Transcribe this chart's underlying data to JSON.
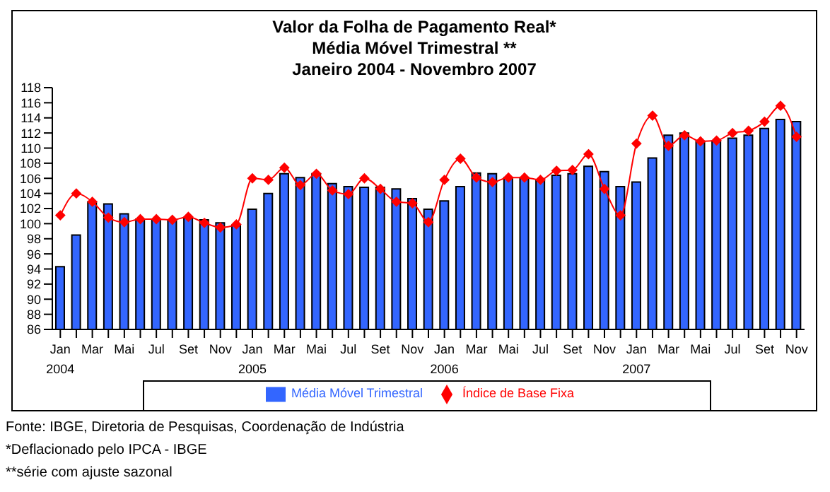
{
  "chart_data": {
    "type": "bar",
    "title": "Valor da Folha de Pagamento Real*",
    "subtitle": "Média Móvel Trimestral **\nJaneiro 2004 - Novembro 2007",
    "categories": [
      "Jan\n2004",
      null,
      "Mar",
      null,
      "Mai",
      null,
      "Jul",
      null,
      "Set",
      null,
      "Nov",
      null,
      "Jan\n2005",
      null,
      "Mar",
      null,
      "Mai",
      null,
      "Jul",
      null,
      "Set",
      null,
      "Nov",
      null,
      "Jan\n2006",
      null,
      "Mar",
      null,
      "Mai",
      null,
      "Jul",
      null,
      "Set",
      null,
      "Nov",
      null,
      "Jan\n2007",
      null,
      "Mar",
      null,
      "Mai",
      null,
      "Jul",
      null,
      "Set",
      null,
      "Nov"
    ],
    "series": [
      {
        "name": "Média Móvel Trimestral",
        "color": "#3366ff",
        "values": [
          94.3,
          98.5,
          102.9,
          102.6,
          101.3,
          100.6,
          100.6,
          100.5,
          100.8,
          100.5,
          100.1,
          99.8,
          101.9,
          104.0,
          106.6,
          106.1,
          106.6,
          105.3,
          104.9,
          104.8,
          104.8,
          104.6,
          103.3,
          101.9,
          103.0,
          104.9,
          106.7,
          106.6,
          106.1,
          106.1,
          105.8,
          106.4,
          106.6,
          107.6,
          106.9,
          104.9,
          105.5,
          108.7,
          111.7,
          112.0,
          110.9,
          110.9,
          111.3,
          111.7,
          112.6,
          113.8,
          113.5
        ]
      },
      {
        "name": "Índice de Base Fixa",
        "type": "line",
        "color": "#ff0000",
        "marker": "diamond",
        "values": [
          101.1,
          104.0,
          102.9,
          100.8,
          100.2,
          100.6,
          100.6,
          100.5,
          100.9,
          100.1,
          99.5,
          99.9,
          106.0,
          105.8,
          107.4,
          105.1,
          106.6,
          104.4,
          103.9,
          106.0,
          104.6,
          102.9,
          102.7,
          100.2,
          105.8,
          108.6,
          106.1,
          105.5,
          106.1,
          106.1,
          105.8,
          107.0,
          107.1,
          109.2,
          104.6,
          101.1,
          110.6,
          114.3,
          110.3,
          111.7,
          110.9,
          111.0,
          112.0,
          112.3,
          113.5,
          115.6,
          111.5
        ]
      }
    ],
    "ylim": [
      86,
      118
    ],
    "yticks": [
      86,
      88,
      90,
      92,
      94,
      96,
      98,
      100,
      102,
      104,
      106,
      108,
      110,
      112,
      114,
      116,
      118
    ],
    "grid": false,
    "legend": "bottom",
    "annotations": [
      "Fonte: IBGE, Diretoria de Pesquisas, Coordenação de Indústria",
      "*Deflacionado pelo IPCA - IBGE",
      "**série com ajuste sazonal"
    ]
  }
}
